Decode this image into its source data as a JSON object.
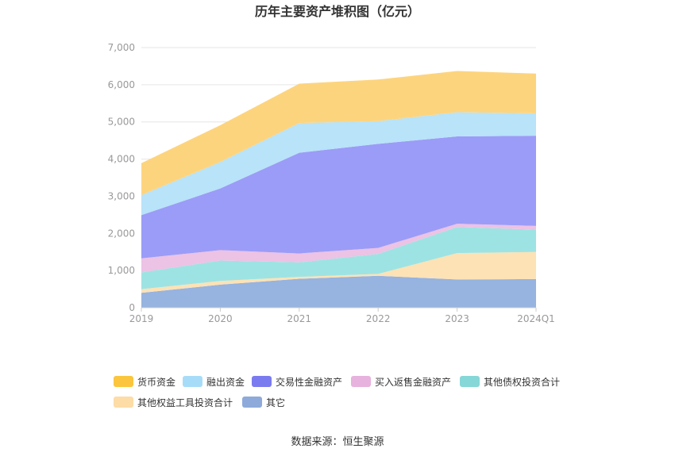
{
  "source_label": "数据来源：恒生聚源",
  "chart_data": {
    "type": "area",
    "stacked": true,
    "title": "历年主要资产堆积图（亿元）",
    "categories": [
      "2019",
      "2020",
      "2021",
      "2022",
      "2023",
      "2024Q1"
    ],
    "ylim": [
      0,
      7000
    ],
    "yticks": [
      0,
      1000,
      2000,
      3000,
      4000,
      5000,
      6000,
      7000
    ],
    "ytick_labels": [
      "0",
      "1,000",
      "2,000",
      "3,000",
      "4,000",
      "5,000",
      "6,000",
      "7,000"
    ],
    "grid": true,
    "legend_position": "bottom-left",
    "series": [
      {
        "name": "其它",
        "color": "#97b3df",
        "values": [
          400,
          620,
          780,
          860,
          760,
          770
        ]
      },
      {
        "name": "其他权益工具投资合计",
        "color": "#fde2b5",
        "values": [
          100,
          100,
          50,
          50,
          710,
          730
        ]
      },
      {
        "name": "其他债权投资合计",
        "color": "#9ee3e3",
        "values": [
          450,
          550,
          390,
          540,
          700,
          600
        ]
      },
      {
        "name": "买入返售金融资产",
        "color": "#ecc2e5",
        "values": [
          380,
          280,
          240,
          160,
          90,
          100
        ]
      },
      {
        "name": "交易性金融资产",
        "color": "#9b9cf7",
        "values": [
          1160,
          1660,
          2710,
          2800,
          2350,
          2430
        ]
      },
      {
        "name": "融出资金",
        "color": "#b8e3f9",
        "values": [
          540,
          710,
          800,
          610,
          650,
          600
        ]
      },
      {
        "name": "货币资金",
        "color": "#fdd47e",
        "values": [
          860,
          990,
          1060,
          1120,
          1110,
          1070
        ]
      }
    ],
    "legend_colors": {
      "货币资金": "#fbc63e",
      "融出资金": "#a7dcf8",
      "交易性金融资产": "#7b7bf0",
      "买入返售金融资产": "#e7b2dd",
      "其他债权投资合计": "#86d7d7",
      "其他权益工具投资合计": "#fddca6",
      "其它": "#8eaadb"
    },
    "legend_order": [
      "货币资金",
      "融出资金",
      "交易性金融资产",
      "买入返售金融资产",
      "其他债权投资合计",
      "其他权益工具投资合计",
      "其它"
    ]
  }
}
